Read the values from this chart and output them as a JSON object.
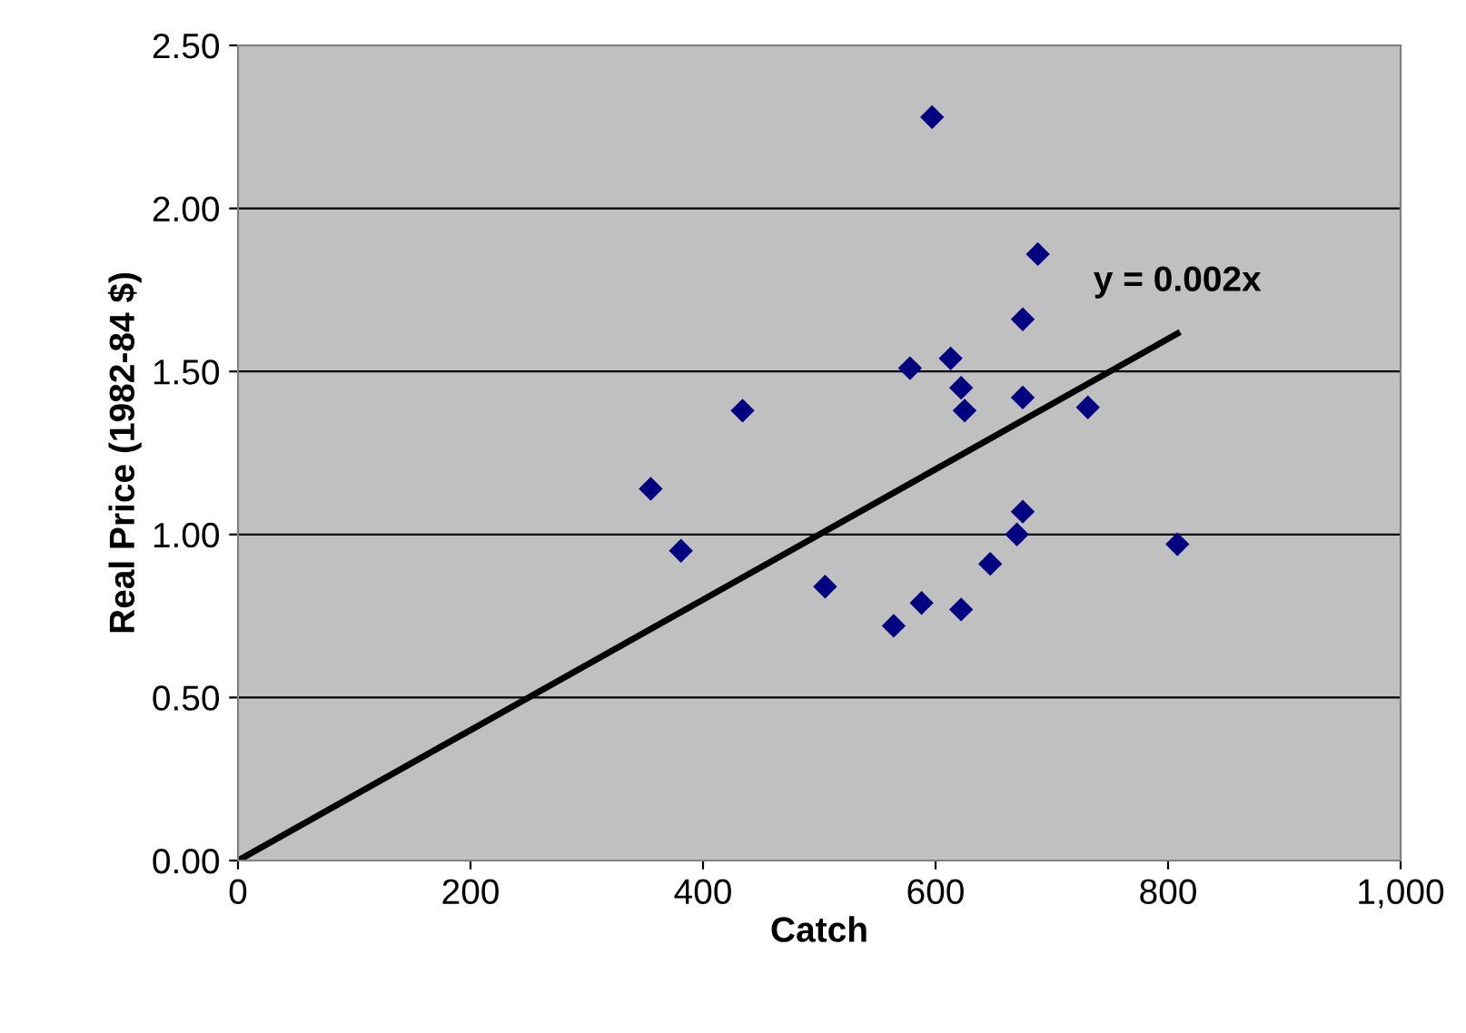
{
  "chart_data": {
    "type": "scatter",
    "xlabel": "Catch",
    "ylabel": "Real Price (1982-84 $)",
    "xlim": [
      0,
      1000
    ],
    "xticks": [
      0,
      200,
      400,
      600,
      800,
      {
        "value": 1000,
        "label": "1,000"
      }
    ],
    "ylim": [
      0,
      2.5
    ],
    "yticks": [
      {
        "value": 0,
        "label": "0.00"
      },
      {
        "value": 0.5,
        "label": "0.50"
      },
      {
        "value": 1,
        "label": "1.00"
      },
      {
        "value": 1.5,
        "label": "1.50"
      },
      {
        "value": 2,
        "label": "2.00"
      },
      {
        "value": 2.5,
        "label": "2.50"
      }
    ],
    "grid": "y",
    "legend": false,
    "marker": "diamond",
    "series": [
      {
        "color": "#000080",
        "x": [
          355,
          381,
          434,
          505,
          564,
          588,
          622,
          647,
          670,
          675,
          808,
          597,
          688,
          675,
          578,
          613,
          622,
          625,
          675,
          731
        ],
        "values": [
          1.14,
          0.95,
          1.38,
          0.84,
          0.72,
          0.79,
          0.77,
          0.91,
          1.0,
          1.07,
          0.97,
          2.28,
          1.86,
          1.66,
          1.51,
          1.54,
          1.45,
          1.38,
          1.42,
          1.39
        ]
      },
      {
        "type": "line",
        "color": "#000000",
        "x": [
          0,
          808
        ],
        "values": [
          0,
          1.616
        ],
        "marker": "none"
      }
    ],
    "annotations": [
      {
        "text": "y = 0.002x",
        "x": 808,
        "y": 1.616
      }
    ]
  }
}
